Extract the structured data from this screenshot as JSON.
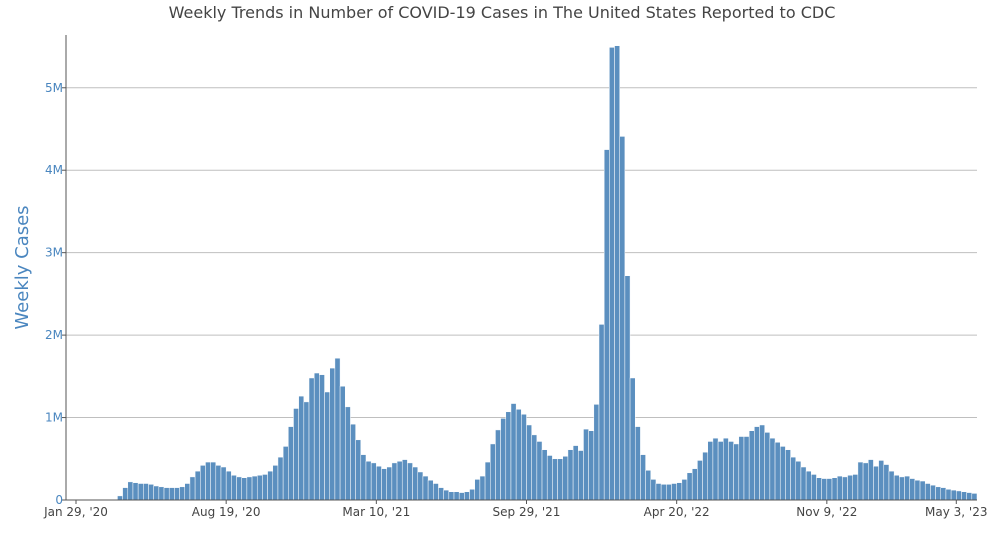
{
  "chart_data": {
    "type": "bar",
    "title": "Weekly Trends in Number of COVID-19 Cases in The United States Reported to CDC",
    "xlabel": "",
    "ylabel": "Weekly Cases",
    "ylim": [
      0,
      5640000
    ],
    "y_ticks": [
      {
        "value": 0,
        "label": "0"
      },
      {
        "value": 1000000,
        "label": "1M"
      },
      {
        "value": 2000000,
        "label": "2M"
      },
      {
        "value": 3000000,
        "label": "3M"
      },
      {
        "value": 4000000,
        "label": "4M"
      },
      {
        "value": 5000000,
        "label": "5M"
      }
    ],
    "x_ticks": [
      {
        "index": 0,
        "label": "Jan 29, '20"
      },
      {
        "index": 29,
        "label": "Aug 19, '20"
      },
      {
        "index": 58,
        "label": "Mar 10, '21"
      },
      {
        "index": 87,
        "label": "Sep 29, '21"
      },
      {
        "index": 116,
        "label": "Apr 20, '22"
      },
      {
        "index": 145,
        "label": "Nov 9, '22"
      },
      {
        "index": 170,
        "label": "May 3, '23"
      }
    ],
    "grid": true,
    "colors": {
      "bar": "#5b8fbf",
      "title": "#444444",
      "axis_label": "#4a86bf",
      "grid": "#bfbfbf"
    },
    "week_start": "Jan 29, '20",
    "values": [
      0,
      0,
      0,
      0,
      0,
      0,
      0,
      0,
      50000,
      150000,
      220000,
      210000,
      200000,
      200000,
      190000,
      170000,
      160000,
      150000,
      150000,
      150000,
      160000,
      200000,
      280000,
      350000,
      420000,
      460000,
      460000,
      420000,
      400000,
      350000,
      300000,
      280000,
      270000,
      280000,
      290000,
      300000,
      310000,
      350000,
      420000,
      520000,
      650000,
      890000,
      1110000,
      1260000,
      1190000,
      1480000,
      1540000,
      1520000,
      1310000,
      1600000,
      1720000,
      1380000,
      1130000,
      920000,
      730000,
      550000,
      470000,
      450000,
      410000,
      380000,
      400000,
      450000,
      470000,
      490000,
      450000,
      400000,
      340000,
      290000,
      240000,
      200000,
      150000,
      120000,
      100000,
      100000,
      90000,
      100000,
      130000,
      250000,
      290000,
      460000,
      680000,
      850000,
      990000,
      1070000,
      1170000,
      1100000,
      1040000,
      910000,
      790000,
      710000,
      610000,
      540000,
      500000,
      500000,
      530000,
      610000,
      660000,
      600000,
      860000,
      840000,
      1160000,
      2130000,
      4250000,
      5490000,
      5510000,
      4410000,
      2720000,
      1480000,
      890000,
      550000,
      360000,
      250000,
      200000,
      190000,
      190000,
      200000,
      210000,
      250000,
      330000,
      380000,
      480000,
      580000,
      710000,
      750000,
      710000,
      750000,
      710000,
      680000,
      770000,
      770000,
      840000,
      890000,
      910000,
      820000,
      750000,
      700000,
      650000,
      610000,
      520000,
      470000,
      400000,
      350000,
      310000,
      270000,
      260000,
      260000,
      270000,
      290000,
      280000,
      300000,
      310000,
      460000,
      450000,
      490000,
      410000,
      480000,
      430000,
      350000,
      300000,
      280000,
      290000,
      260000,
      240000,
      230000,
      200000,
      180000,
      160000,
      150000,
      130000,
      120000,
      110000,
      100000,
      90000,
      80000
    ]
  }
}
